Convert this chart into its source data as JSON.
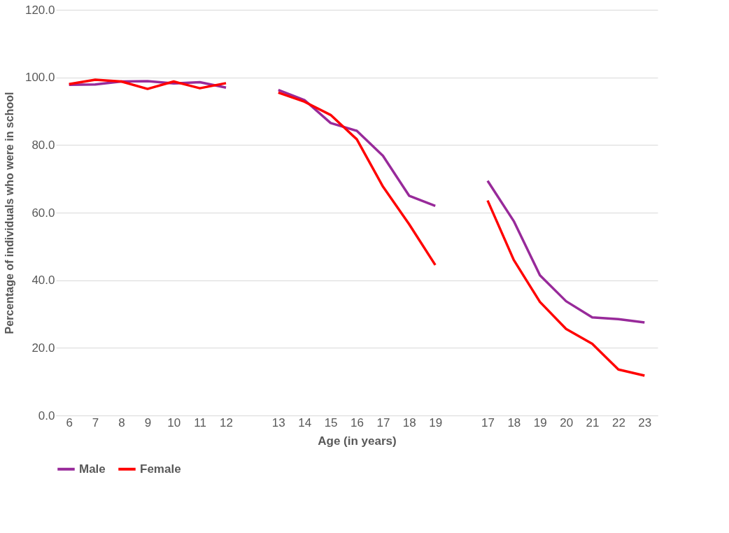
{
  "chart_data": {
    "type": "line",
    "xlabel": "Age (in years)",
    "ylabel": "Percentage of individuals who were in school",
    "categories": [
      "6",
      "7",
      "8",
      "9",
      "10",
      "11",
      "12",
      null,
      "13",
      "14",
      "15",
      "16",
      "17",
      "18",
      "19",
      null,
      "17",
      "18",
      "19",
      "20",
      "21",
      "22",
      "23"
    ],
    "series": [
      {
        "name": "Male",
        "color": "#982a9a",
        "values": [
          97.8,
          97.9,
          98.8,
          98.9,
          98.2,
          98.6,
          97.0,
          null,
          96.3,
          93.3,
          86.5,
          84.2,
          76.8,
          65.0,
          62.0,
          null,
          69.4,
          57.5,
          41.5,
          33.8,
          29.0,
          28.5,
          27.5
        ]
      },
      {
        "name": "Female",
        "color": "#ff0000",
        "values": [
          98.0,
          99.3,
          98.8,
          96.6,
          98.8,
          96.8,
          98.3,
          null,
          95.5,
          92.8,
          88.9,
          81.7,
          67.7,
          56.6,
          44.5,
          null,
          63.6,
          46.0,
          33.6,
          25.6,
          21.2,
          13.6,
          11.8
        ]
      }
    ],
    "ylim": [
      0,
      120
    ],
    "yticks": [
      {
        "value": 0,
        "label": "0.0"
      },
      {
        "value": 20,
        "label": "20.0"
      },
      {
        "value": 40,
        "label": "40.0"
      },
      {
        "value": 60,
        "label": "60.0"
      },
      {
        "value": 80,
        "label": "80.0"
      },
      {
        "value": 100,
        "label": "100.0"
      },
      {
        "value": 120,
        "label": "120.0"
      }
    ],
    "grid": "y",
    "legend": "bottom",
    "line_style": "solid",
    "marker": "none"
  }
}
